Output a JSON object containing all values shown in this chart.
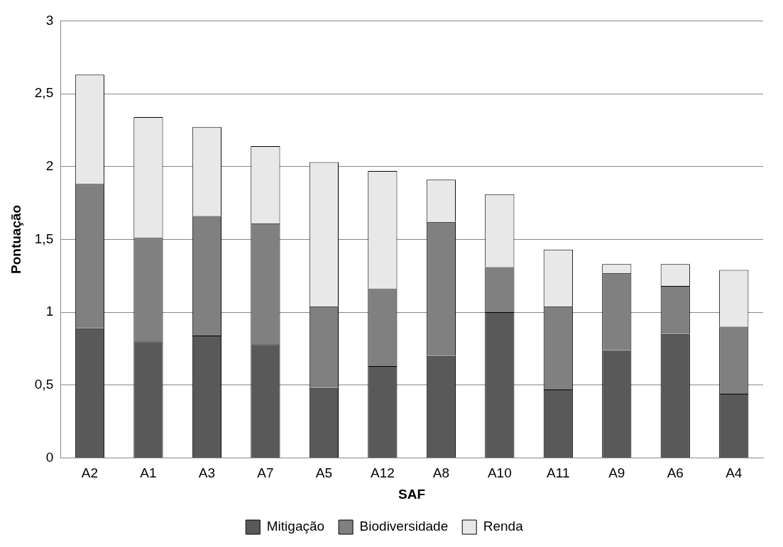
{
  "chart_data": {
    "type": "bar",
    "xlabel": "SAF",
    "ylabel": "Pontuação",
    "stacked": true,
    "categories": [
      "A2",
      "A1",
      "A3",
      "A7",
      "A5",
      "A12",
      "A8",
      "A10",
      "A11",
      "A9",
      "A6",
      "A4"
    ],
    "series": [
      {
        "name": "Mitigação",
        "color": "#595959",
        "values": [
          0.89,
          0.8,
          0.84,
          0.78,
          0.48,
          0.63,
          0.7,
          1.0,
          0.47,
          0.74,
          0.85,
          0.44
        ]
      },
      {
        "name": "Biodiversidade",
        "color": "#808080",
        "values": [
          0.99,
          0.71,
          0.82,
          0.83,
          0.56,
          0.53,
          0.92,
          0.31,
          0.57,
          0.53,
          0.33,
          0.46
        ]
      },
      {
        "name": "Renda",
        "color": "#e8e8e8",
        "values": [
          0.75,
          0.83,
          0.61,
          0.53,
          0.99,
          0.81,
          0.29,
          0.5,
          0.39,
          0.06,
          0.15,
          0.39
        ]
      }
    ],
    "ylim": [
      0,
      3
    ],
    "yticks": [
      0,
      {
        "value": 0.5,
        "label": "0,5"
      },
      1,
      {
        "value": 1.5,
        "label": "1,5"
      },
      2,
      {
        "value": 2.5,
        "label": "2,5"
      },
      3
    ],
    "grid": "y",
    "legend": "bottom"
  }
}
